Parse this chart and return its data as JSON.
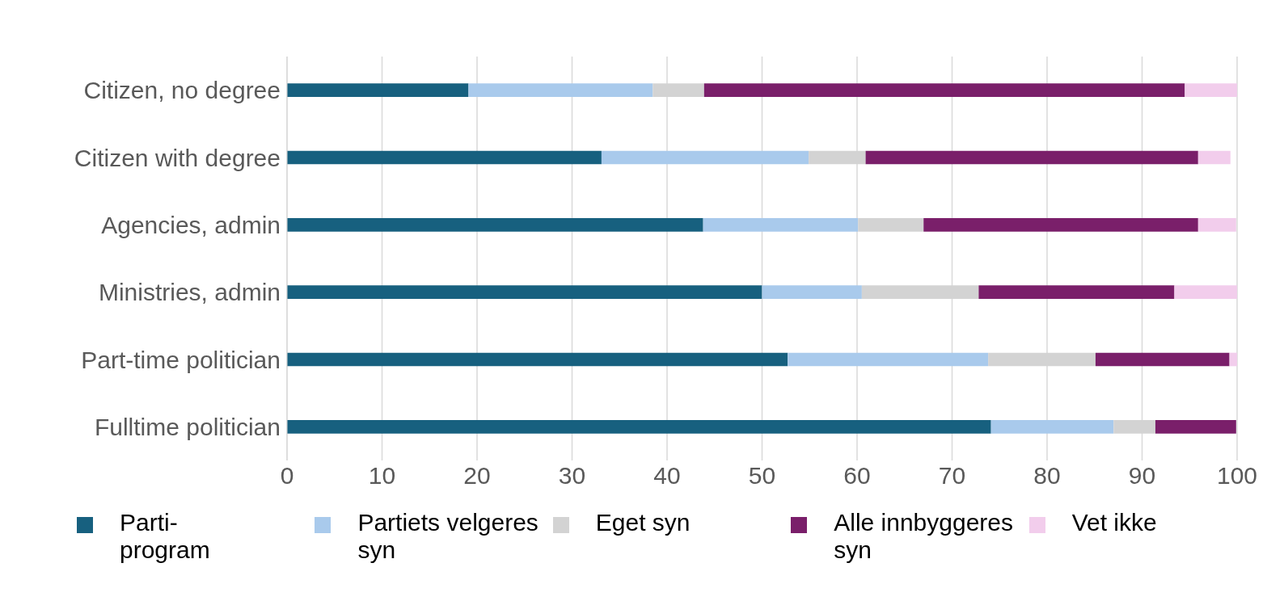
{
  "chart_data": {
    "type": "bar",
    "orientation": "horizontal",
    "stacked": true,
    "categories": [
      "Citizen, no degree",
      "Citizen with degree",
      "Agencies, admin",
      "Ministries, admin",
      "Part-time politician",
      "Fulltime politician"
    ],
    "series": [
      {
        "name": "Parti-program",
        "color": "#17607f",
        "values": [
          19.1,
          33.1,
          43.8,
          50.0,
          52.7,
          74.1
        ]
      },
      {
        "name": "Partiets velgeres syn",
        "color": "#a9caec",
        "values": [
          19.4,
          21.8,
          16.3,
          10.5,
          21.1,
          12.9
        ]
      },
      {
        "name": "Eget syn",
        "color": "#d3d3d3",
        "values": [
          5.4,
          6.0,
          6.9,
          12.3,
          11.3,
          4.4
        ]
      },
      {
        "name": "Alle innbyggeres syn",
        "color": "#7a1f6a",
        "values": [
          50.6,
          35.0,
          28.9,
          20.6,
          14.1,
          8.5
        ]
      },
      {
        "name": "Vet ikke",
        "color": "#f2cdec",
        "values": [
          5.5,
          3.4,
          4.0,
          6.6,
          0.8,
          null
        ]
      }
    ],
    "xlim": [
      0,
      100
    ],
    "xticks": [
      0,
      10,
      20,
      30,
      40,
      50,
      60,
      70,
      80,
      90,
      100
    ],
    "grid": "x",
    "legend": "bottom"
  }
}
